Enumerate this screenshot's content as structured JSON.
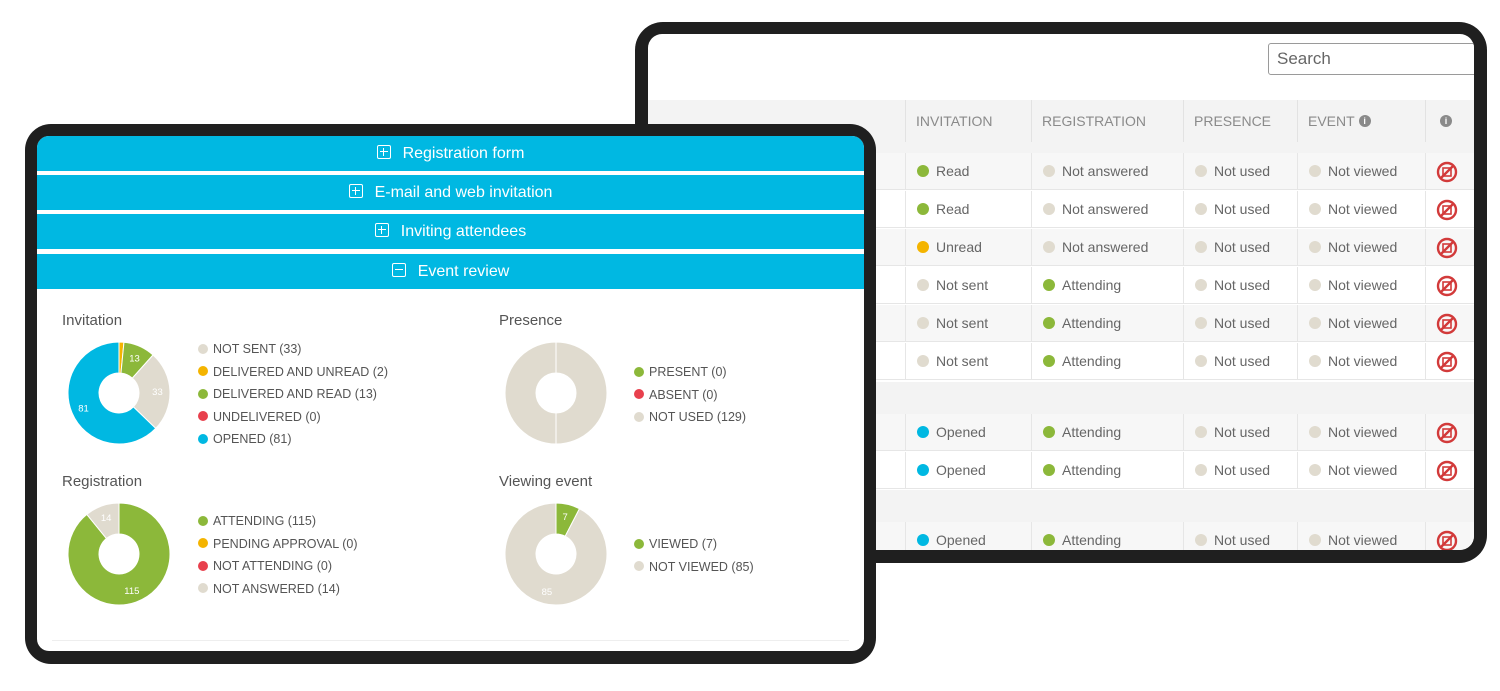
{
  "colors": {
    "accent": "#00b8e2",
    "green": "#8cb83a",
    "yellow": "#f4b400",
    "red": "#e8404d",
    "blue": "#00b8e2",
    "grey": "#e0dbcf"
  },
  "table": {
    "search_placeholder": "Search",
    "columns": [
      "INVITATION",
      "REGISTRATION",
      "PRESENCE",
      "EVENT"
    ],
    "info_icon": "info-icon",
    "rows": [
      {
        "invitation": "Read",
        "inv_color": "green",
        "registration": "Not answered",
        "reg_color": "grey",
        "presence": "Not used",
        "event": "Not viewed"
      },
      {
        "invitation": "Read",
        "inv_color": "green",
        "registration": "Not answered",
        "reg_color": "grey",
        "presence": "Not used",
        "event": "Not viewed"
      },
      {
        "invitation": "Unread",
        "inv_color": "yellow",
        "registration": "Not answered",
        "reg_color": "grey",
        "presence": "Not used",
        "event": "Not viewed"
      },
      {
        "invitation": "Not sent",
        "inv_color": "grey",
        "registration": "Attending",
        "reg_color": "green",
        "presence": "Not used",
        "event": "Not viewed"
      },
      {
        "invitation": "Not sent",
        "inv_color": "grey",
        "registration": "Attending",
        "reg_color": "green",
        "presence": "Not used",
        "event": "Not viewed"
      },
      {
        "invitation": "Not sent",
        "inv_color": "grey",
        "registration": "Attending",
        "reg_color": "green",
        "presence": "Not used",
        "event": "Not viewed"
      },
      {
        "invitation": "Opened",
        "inv_color": "blue",
        "registration": "Attending",
        "reg_color": "green",
        "presence": "Not used",
        "event": "Not viewed"
      },
      {
        "invitation": "Opened",
        "inv_color": "blue",
        "registration": "Attending",
        "reg_color": "green",
        "presence": "Not used",
        "event": "Not viewed"
      },
      {
        "invitation": "Opened",
        "inv_color": "blue",
        "registration": "Attending",
        "reg_color": "green",
        "presence": "Not used",
        "event": "Not viewed"
      }
    ]
  },
  "accordion": [
    {
      "label": "Registration form",
      "expanded": false
    },
    {
      "label": "E-mail and web invitation",
      "expanded": false
    },
    {
      "label": "Inviting attendees",
      "expanded": false
    },
    {
      "label": "Event review",
      "expanded": true
    }
  ],
  "chart_data": [
    {
      "type": "pie",
      "title": "Invitation",
      "categories": [
        "NOT SENT (33)",
        "DELIVERED AND UNREAD (2)",
        "DELIVERED AND READ (13)",
        "UNDELIVERED (0)",
        "OPENED (81)"
      ],
      "values": [
        33,
        2,
        13,
        0,
        81
      ],
      "colors": [
        "#e0dbcf",
        "#f4b400",
        "#8cb83a",
        "#e8404d",
        "#00b8e2"
      ],
      "order": [
        1,
        2,
        0,
        4
      ],
      "slice_labels": {
        "2": "13",
        "0": "33",
        "4": "81"
      }
    },
    {
      "type": "pie",
      "title": "Presence",
      "categories": [
        "PRESENT (0)",
        "ABSENT (0)",
        "NOT USED (129)"
      ],
      "values": [
        0,
        0,
        129
      ],
      "colors": [
        "#8cb83a",
        "#e8404d",
        "#e0dbcf"
      ],
      "order": [
        2
      ],
      "slice_labels": {}
    },
    {
      "type": "pie",
      "title": "Registration",
      "categories": [
        "ATTENDING (115)",
        "PENDING APPROVAL (0)",
        "NOT ATTENDING (0)",
        "NOT ANSWERED (14)"
      ],
      "values": [
        115,
        0,
        0,
        14
      ],
      "colors": [
        "#8cb83a",
        "#f4b400",
        "#e8404d",
        "#e0dbcf"
      ],
      "order": [
        0,
        3
      ],
      "slice_labels": {
        "0": "115",
        "3": "14"
      }
    },
    {
      "type": "pie",
      "title": "Viewing event",
      "categories": [
        "VIEWED (7)",
        "NOT VIEWED (85)"
      ],
      "values": [
        7,
        85
      ],
      "colors": [
        "#8cb83a",
        "#e0dbcf"
      ],
      "order": [
        0,
        1
      ],
      "slice_labels": {
        "0": "7",
        "1": "85"
      }
    }
  ]
}
